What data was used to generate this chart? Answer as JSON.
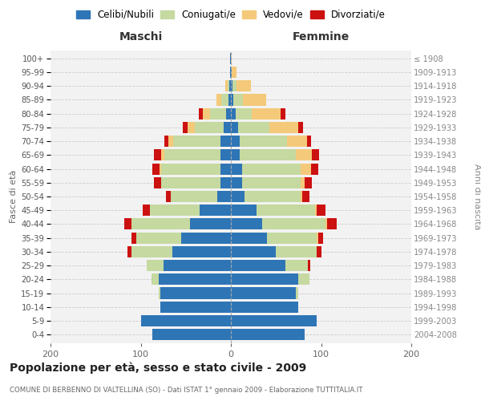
{
  "age_groups_bottom_to_top": [
    "0-4",
    "5-9",
    "10-14",
    "15-19",
    "20-24",
    "25-29",
    "30-34",
    "35-39",
    "40-44",
    "45-49",
    "50-54",
    "55-59",
    "60-64",
    "65-69",
    "70-74",
    "75-79",
    "80-84",
    "85-89",
    "90-94",
    "95-99",
    "100+"
  ],
  "birth_years_bottom_to_top": [
    "2004-2008",
    "1999-2003",
    "1994-1998",
    "1989-1993",
    "1984-1988",
    "1979-1983",
    "1974-1978",
    "1969-1973",
    "1964-1968",
    "1959-1963",
    "1954-1958",
    "1949-1953",
    "1944-1948",
    "1939-1943",
    "1934-1938",
    "1929-1933",
    "1924-1928",
    "1919-1923",
    "1914-1918",
    "1909-1913",
    "≤ 1908"
  ],
  "colors": {
    "celibi": "#2e75b6",
    "coniugati": "#c5d9a0",
    "vedovi": "#f5c97a",
    "divorziati": "#cc1111"
  },
  "legend_labels": [
    "Celibi/Nubili",
    "Coniugati/e",
    "Vedovi/e",
    "Divorziati/e"
  ],
  "maschi_celibi": [
    87,
    100,
    78,
    78,
    80,
    75,
    65,
    55,
    45,
    35,
    15,
    12,
    12,
    12,
    12,
    8,
    5,
    3,
    2,
    1,
    1
  ],
  "maschi_coniugati": [
    0,
    0,
    0,
    2,
    8,
    18,
    45,
    50,
    65,
    55,
    52,
    65,
    65,
    62,
    52,
    32,
    18,
    8,
    2,
    0,
    0
  ],
  "maschi_vedovi": [
    0,
    0,
    0,
    0,
    0,
    0,
    0,
    0,
    0,
    0,
    0,
    0,
    2,
    3,
    5,
    8,
    8,
    5,
    2,
    0,
    0
  ],
  "maschi_divorziati": [
    0,
    0,
    0,
    0,
    0,
    0,
    5,
    5,
    8,
    8,
    5,
    8,
    8,
    8,
    5,
    5,
    5,
    0,
    0,
    0,
    0
  ],
  "femmine_nubili": [
    82,
    95,
    75,
    72,
    75,
    60,
    50,
    40,
    35,
    28,
    15,
    12,
    12,
    10,
    10,
    8,
    5,
    3,
    2,
    1,
    0
  ],
  "femmine_coniugate": [
    0,
    0,
    0,
    3,
    12,
    25,
    45,
    55,
    70,
    65,
    62,
    65,
    65,
    62,
    52,
    35,
    18,
    10,
    4,
    0,
    0
  ],
  "femmine_vedove": [
    0,
    0,
    0,
    0,
    0,
    0,
    0,
    2,
    2,
    2,
    2,
    5,
    12,
    18,
    22,
    32,
    32,
    26,
    16,
    5,
    1
  ],
  "femmine_divorziate": [
    0,
    0,
    0,
    0,
    0,
    3,
    5,
    5,
    10,
    10,
    8,
    8,
    8,
    8,
    5,
    5,
    5,
    0,
    0,
    0,
    0
  ],
  "xlim": 200,
  "title": "Popolazione per età, sesso e stato civile - 2009",
  "subtitle": "COMUNE DI BERBENNO DI VALTELLINA (SO) - Dati ISTAT 1° gennaio 2009 - Elaborazione TUTTITALIA.IT",
  "ylabel_left": "Fasce di età",
  "ylabel_right": "Anni di nascita",
  "xlabel_maschi": "Maschi",
  "xlabel_femmine": "Femmine",
  "bg_color": "#ffffff",
  "plot_bg_color": "#f2f2f2"
}
